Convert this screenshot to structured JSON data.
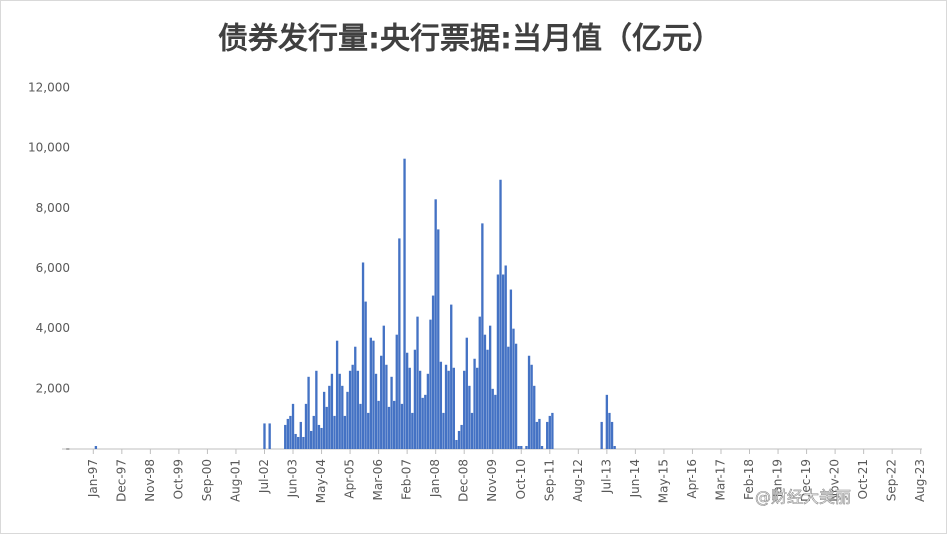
{
  "chart_data": {
    "type": "bar",
    "title": "债券发行量:央行票据:当月值（亿元）",
    "watermark": "@财经大美丽",
    "color": "#4472c4",
    "categories": [
      "Jan-97",
      null,
      null,
      null,
      null,
      null,
      null,
      null,
      null,
      null,
      null,
      "Dec-97",
      null,
      null,
      null,
      null,
      null,
      null,
      null,
      null,
      null,
      null,
      "Nov-98",
      null,
      null,
      null,
      null,
      null,
      null,
      null,
      null,
      null,
      null,
      "Oct-99",
      null,
      null,
      null,
      null,
      null,
      null,
      null,
      null,
      null,
      null,
      "Sep-00",
      null,
      null,
      null,
      null,
      null,
      null,
      null,
      null,
      null,
      null,
      "Aug-01",
      null,
      null,
      null,
      null,
      null,
      null,
      null,
      null,
      null,
      null,
      "Jul-02",
      null,
      null,
      null,
      null,
      null,
      null,
      null,
      null,
      null,
      null,
      "Jun-03",
      null,
      null,
      null,
      null,
      null,
      null,
      null,
      null,
      null,
      null,
      "May-04",
      null,
      null,
      null,
      null,
      null,
      null,
      null,
      null,
      null,
      null,
      "Apr-05",
      null,
      null,
      null,
      null,
      null,
      null,
      null,
      null,
      null,
      null,
      "Mar-06",
      null,
      null,
      null,
      null,
      null,
      null,
      null,
      null,
      null,
      null,
      "Feb-07",
      null,
      null,
      null,
      null,
      null,
      null,
      null,
      null,
      null,
      null,
      "Jan-08",
      null,
      null,
      null,
      null,
      null,
      null,
      null,
      null,
      null,
      null,
      "Dec-08",
      null,
      null,
      null,
      null,
      null,
      null,
      null,
      null,
      null,
      null,
      "Nov-09",
      null,
      null,
      null,
      null,
      null,
      null,
      null,
      null,
      null,
      null,
      "Oct-10",
      null,
      null,
      null,
      null,
      null,
      null,
      null,
      null,
      null,
      null,
      "Sep-11",
      null,
      null,
      null,
      null,
      null,
      null,
      null,
      null,
      null,
      null,
      "Aug-12",
      null,
      null,
      null,
      null,
      null,
      null,
      null,
      null,
      null,
      null,
      "Jul-13",
      null,
      null,
      null,
      null,
      null,
      null,
      null,
      null,
      null,
      null,
      "Jun-14",
      null,
      null,
      null,
      null,
      null,
      null,
      null,
      null,
      null,
      null,
      "May-15",
      null,
      null,
      null,
      null,
      null,
      null,
      null,
      null,
      null,
      null,
      "Apr-16",
      null,
      null,
      null,
      null,
      null,
      null,
      null,
      null,
      null,
      null,
      "Mar-17",
      null,
      null,
      null,
      null,
      null,
      null,
      null,
      null,
      null,
      null,
      "Feb-18",
      null,
      null,
      null,
      null,
      null,
      null,
      null,
      null,
      null,
      null,
      "Jan-19",
      null,
      null,
      null,
      null,
      null,
      null,
      null,
      null,
      null,
      null,
      "Dec-19",
      null,
      null,
      null,
      null,
      null,
      null,
      null,
      null,
      null,
      null,
      "Nov-20",
      null,
      null,
      null,
      null,
      null,
      null,
      null,
      null,
      null,
      null,
      "Oct-21",
      null,
      null,
      null,
      null,
      null,
      null,
      null,
      null,
      null,
      null,
      "Sep-22",
      null,
      null,
      null,
      null,
      null,
      null,
      null,
      null,
      null,
      null,
      "Aug-23"
    ],
    "values": [
      0,
      100,
      0,
      0,
      0,
      0,
      0,
      0,
      0,
      0,
      0,
      0,
      0,
      0,
      0,
      0,
      0,
      0,
      0,
      0,
      0,
      0,
      0,
      0,
      0,
      0,
      0,
      0,
      0,
      0,
      0,
      0,
      0,
      0,
      0,
      0,
      0,
      0,
      0,
      0,
      0,
      0,
      0,
      0,
      0,
      0,
      0,
      0,
      0,
      0,
      0,
      0,
      0,
      0,
      0,
      0,
      0,
      0,
      0,
      0,
      0,
      0,
      0,
      0,
      0,
      0,
      850,
      0,
      850,
      0,
      0,
      0,
      0,
      0,
      800,
      1000,
      1100,
      1500,
      500,
      400,
      900,
      400,
      1500,
      2400,
      600,
      1100,
      2600,
      800,
      700,
      1900,
      1400,
      2100,
      2500,
      1100,
      3600,
      2500,
      2100,
      1100,
      1900,
      2600,
      2800,
      3400,
      2600,
      1500,
      6200,
      4900,
      1200,
      3700,
      3600,
      2500,
      1600,
      3100,
      4100,
      2800,
      1400,
      2400,
      1600,
      3800,
      7000,
      1500,
      9650,
      3200,
      2700,
      1200,
      3300,
      4400,
      2600,
      1700,
      1800,
      2500,
      4300,
      5100,
      8300,
      7300,
      2900,
      1200,
      2800,
      2600,
      4800,
      2700,
      300,
      600,
      800,
      2600,
      3700,
      2100,
      1200,
      3000,
      2700,
      4400,
      7500,
      3800,
      3300,
      4100,
      2000,
      1800,
      5800,
      8950,
      5800,
      6100,
      3400,
      5300,
      4000,
      3500,
      100,
      100,
      0,
      100,
      3100,
      2800,
      2100,
      900,
      1000,
      100,
      0,
      900,
      1100,
      1200,
      0,
      0,
      0,
      0,
      0,
      0,
      0,
      0,
      0,
      0,
      0,
      0,
      0,
      0,
      0,
      0,
      0,
      0,
      900,
      0,
      1800,
      1200,
      900,
      100,
      0,
      0,
      0,
      0,
      0,
      0,
      0,
      0,
      0,
      0,
      0,
      0,
      0,
      0,
      0,
      0,
      0,
      0,
      0,
      0,
      0,
      0,
      0,
      0,
      0,
      0,
      0,
      0,
      0,
      0,
      0,
      0,
      0,
      0,
      0,
      0,
      0,
      0,
      0,
      0,
      0,
      0,
      0,
      0,
      0,
      0,
      0,
      0,
      0,
      0,
      0,
      0,
      0,
      0,
      0,
      0,
      0,
      0,
      0,
      0,
      0,
      0,
      0,
      0,
      0,
      0,
      0,
      0,
      0,
      0,
      0,
      0,
      0,
      0,
      0,
      0,
      0,
      0,
      0,
      0,
      0,
      0,
      0,
      0,
      0,
      0,
      0,
      0,
      0,
      0,
      0,
      0,
      0,
      0,
      0,
      0,
      0,
      0,
      0,
      0,
      0,
      0,
      0,
      0,
      0,
      0,
      0,
      0,
      0,
      0,
      0,
      0,
      0,
      0,
      0,
      0,
      0,
      0
    ],
    "ylim": [
      0,
      12000
    ],
    "yticks": [
      {
        "value": 0,
        "label": "-"
      },
      {
        "value": 2000,
        "label": "2,000"
      },
      {
        "value": 4000,
        "label": "4,000"
      },
      {
        "value": 6000,
        "label": "6,000"
      },
      {
        "value": 8000,
        "label": "8,000"
      },
      {
        "value": 10000,
        "label": "10,000"
      },
      {
        "value": 12000,
        "label": "12,000"
      }
    ],
    "grid": false
  }
}
